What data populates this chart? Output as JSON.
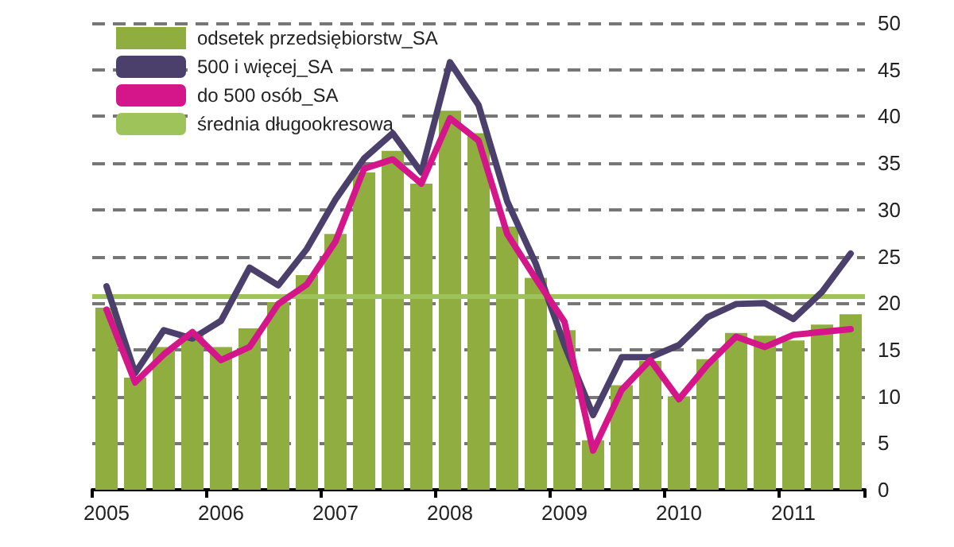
{
  "chart_data": {
    "type": "bar",
    "categories": [
      "2005",
      null,
      null,
      null,
      "2006",
      null,
      null,
      null,
      "2007",
      null,
      null,
      null,
      "2008",
      null,
      null,
      null,
      "2009",
      null,
      null,
      null,
      "2010",
      null,
      null,
      null,
      "2011",
      null,
      null
    ],
    "series": [
      {
        "name": "odsetek przedsiębiorstw_SA",
        "color": "#8fae3f",
        "values": [
          19.5,
          12.0,
          15.3,
          16.5,
          15.3,
          17.3,
          20.1,
          23.0,
          27.4,
          34.0,
          36.3,
          32.8,
          40.6,
          38.2,
          28.2,
          22.7,
          17.1,
          5.3,
          11.2,
          13.8,
          10.0,
          14.0,
          16.8,
          16.5,
          16.0,
          17.7,
          18.8
        ]
      },
      {
        "name": "500 i więcej_SA",
        "type": "line",
        "color": "#4b3f6b",
        "values": [
          21.8,
          12.5,
          17.1,
          16.2,
          18.1,
          23.8,
          21.9,
          25.8,
          31.1,
          35.5,
          38.2,
          34.0,
          45.8,
          41.2,
          30.9,
          24.2,
          15.5,
          8.0,
          14.2,
          14.2,
          15.5,
          18.5,
          19.9,
          20.0,
          18.3,
          21.2,
          25.3
        ]
      },
      {
        "name": "do 500 osób_SA",
        "type": "line",
        "color": "#d4168a",
        "values": [
          19.3,
          11.5,
          14.5,
          16.9,
          13.9,
          15.3,
          19.9,
          22.0,
          26.6,
          34.4,
          35.4,
          32.8,
          39.8,
          37.4,
          27.4,
          22.6,
          18.0,
          4.2,
          10.7,
          13.9,
          9.7,
          13.4,
          16.4,
          15.3,
          16.6,
          16.9,
          17.2
        ]
      }
    ],
    "ref_lines": [
      {
        "axis": "y",
        "value": 20.7,
        "label": "średnia długookresowa",
        "color": "#9dc35a"
      }
    ],
    "ylim": [
      0,
      50
    ],
    "yticks": [
      0,
      5,
      10,
      15,
      20,
      25,
      30,
      35,
      40,
      45,
      50
    ],
    "grid": "y",
    "legend": "top left",
    "marker": "none",
    "line_style": "solid"
  }
}
